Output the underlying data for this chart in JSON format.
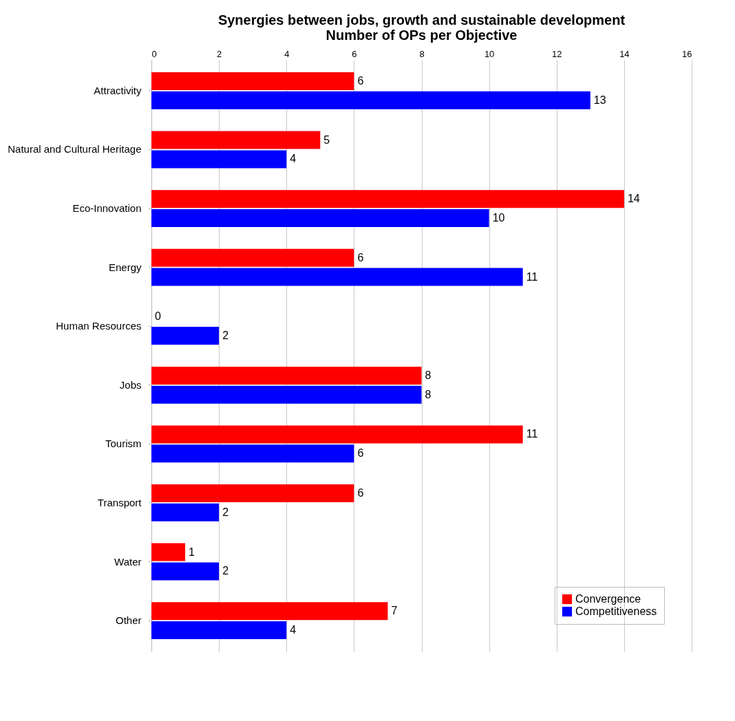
{
  "chart_data": {
    "type": "bar",
    "orientation": "horizontal",
    "title": [
      "Synergies between jobs, growth and sustainable development",
      "Number of OPs per Objective"
    ],
    "categories": [
      "Attractivity",
      "Natural and Cultural Heritage",
      "Eco-Innovation",
      "Energy",
      "Human Resources",
      "Jobs",
      "Tourism",
      "Transport",
      "Water",
      "Other"
    ],
    "series": [
      {
        "name": "Convergence",
        "color": "#ff0000",
        "values": [
          6,
          5,
          14,
          6,
          0,
          8,
          11,
          6,
          1,
          7
        ]
      },
      {
        "name": "Competitiveness",
        "color": "#0000ff",
        "values": [
          13,
          4,
          10,
          11,
          2,
          8,
          6,
          2,
          2,
          4
        ]
      }
    ],
    "xlim": [
      0,
      16
    ],
    "xticks": [
      0,
      2,
      4,
      6,
      8,
      10,
      12,
      14,
      16
    ],
    "grid": "x",
    "legend": "bottom right",
    "data_labels": true
  }
}
